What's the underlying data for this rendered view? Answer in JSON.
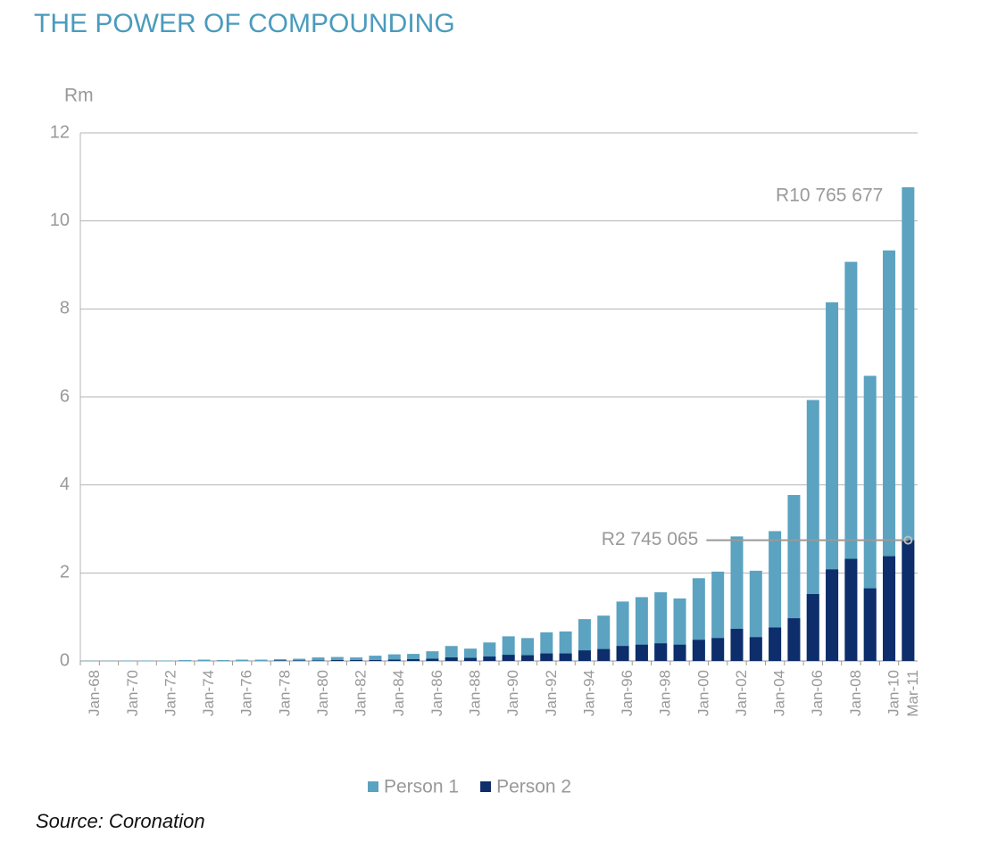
{
  "chart_data": {
    "type": "bar",
    "title": "THE POWER OF COMPOUNDING",
    "y_label": "Rm",
    "source": "Source: Coronation",
    "categories": [
      "Jan-68",
      null,
      "Jan-70",
      null,
      "Jan-72",
      null,
      "Jan-74",
      null,
      "Jan-76",
      null,
      "Jan-78",
      null,
      "Jan-80",
      null,
      "Jan-82",
      null,
      "Jan-84",
      null,
      "Jan-86",
      null,
      "Jan-88",
      null,
      "Jan-90",
      null,
      "Jan-92",
      null,
      "Jan-94",
      null,
      "Jan-96",
      null,
      "Jan-98",
      null,
      "Jan-00",
      null,
      "Jan-02",
      null,
      "Jan-04",
      null,
      "Jan-06",
      null,
      "Jan-08",
      null,
      "Jan-10",
      "Mar-11"
    ],
    "series": [
      {
        "name": "Person 1",
        "color": "#5ba3c0",
        "values": [
          0.005,
          0.005,
          0.01,
          0.01,
          0.01,
          0.02,
          0.03,
          0.02,
          0.03,
          0.03,
          0.04,
          0.05,
          0.08,
          0.09,
          0.08,
          0.12,
          0.15,
          0.16,
          0.22,
          0.34,
          0.28,
          0.42,
          0.56,
          0.52,
          0.65,
          0.67,
          0.95,
          1.03,
          1.35,
          1.45,
          1.56,
          1.42,
          1.88,
          2.03,
          2.83,
          2.05,
          2.95,
          3.77,
          5.93,
          8.15,
          9.07,
          6.48,
          9.33,
          10.765677
        ],
        "value_labels": [
          null,
          null,
          null,
          null,
          null,
          null,
          null,
          null,
          null,
          null,
          null,
          null,
          null,
          null,
          null,
          null,
          null,
          null,
          null,
          null,
          null,
          null,
          null,
          null,
          null,
          null,
          null,
          null,
          null,
          null,
          null,
          null,
          null,
          null,
          null,
          null,
          null,
          null,
          null,
          null,
          null,
          null,
          null,
          "R10 765 677"
        ]
      },
      {
        "name": "Person 2",
        "color": "#0d2d6b",
        "values": [
          0,
          0,
          0,
          0,
          0,
          0,
          0,
          0,
          0,
          0,
          0.01,
          0.01,
          0.01,
          0.02,
          0.02,
          0.02,
          0.03,
          0.04,
          0.05,
          0.08,
          0.07,
          0.1,
          0.14,
          0.13,
          0.17,
          0.17,
          0.24,
          0.27,
          0.34,
          0.37,
          0.4,
          0.37,
          0.48,
          0.52,
          0.73,
          0.54,
          0.76,
          0.97,
          1.52,
          2.08,
          2.32,
          1.65,
          2.38,
          2.745065
        ],
        "value_labels": [
          null,
          null,
          null,
          null,
          null,
          null,
          null,
          null,
          null,
          null,
          null,
          null,
          null,
          null,
          null,
          null,
          null,
          null,
          null,
          null,
          null,
          null,
          null,
          null,
          null,
          null,
          null,
          null,
          null,
          null,
          null,
          null,
          null,
          null,
          null,
          null,
          null,
          null,
          null,
          null,
          null,
          null,
          null,
          "R2 745 065"
        ]
      }
    ],
    "ylim": [
      0,
      12
    ],
    "yticks": [
      0,
      2,
      4,
      6,
      8,
      10,
      12
    ],
    "grid": true,
    "legend": "bottom"
  }
}
